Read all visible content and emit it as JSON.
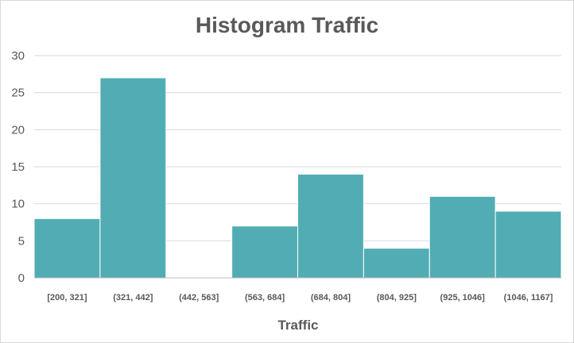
{
  "chart_data": {
    "type": "bar",
    "title": "Histogram Traffic",
    "xlabel": "Traffic",
    "ylabel": "",
    "categories": [
      "[200, 321]",
      "(321, 442]",
      "(442, 563]",
      "(563, 684]",
      "(684, 804]",
      "(804, 925]",
      "(925, 1046]",
      "(1046, 1167]"
    ],
    "values": [
      8,
      27,
      0,
      7,
      14,
      4,
      11,
      9
    ],
    "ylim": [
      0,
      30
    ],
    "yticks": [
      0,
      5,
      10,
      15,
      20,
      25,
      30
    ],
    "grid": true,
    "legend": "none",
    "bar_color": "#51adb3"
  }
}
